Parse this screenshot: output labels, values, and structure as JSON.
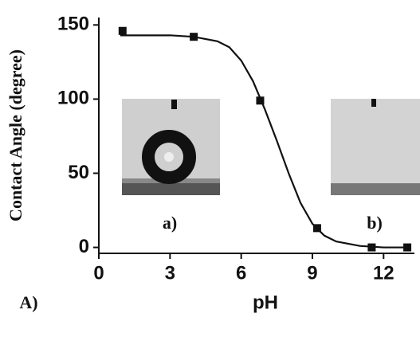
{
  "chart_data": {
    "type": "scatter",
    "xlabel": "pH",
    "ylabel": "Contact Angle (degree)",
    "annotations": [
      "a)",
      "b)",
      "A)"
    ],
    "xlim": [
      0,
      13.3
    ],
    "ylim": [
      -4,
      155
    ],
    "xticks": [
      0,
      3,
      6,
      9,
      12
    ],
    "yticks": [
      0,
      50,
      100,
      150
    ],
    "series": [
      {
        "mode": "markers",
        "color": "#111111",
        "x": [
          1,
          4,
          6.8,
          9.2,
          11.5,
          13
        ],
        "values": [
          146,
          142,
          99,
          13,
          0,
          0
        ]
      },
      {
        "mode": "line",
        "color": "#111111",
        "x": [
          0.9,
          3,
          4,
          5,
          5.5,
          6,
          6.5,
          7,
          7.5,
          8,
          8.5,
          9,
          9.5,
          10,
          11,
          12,
          13
        ],
        "values": [
          143,
          143,
          142,
          139,
          135,
          126,
          112,
          93,
          72,
          50,
          30,
          16,
          8,
          4,
          1,
          0,
          0
        ]
      }
    ]
  }
}
